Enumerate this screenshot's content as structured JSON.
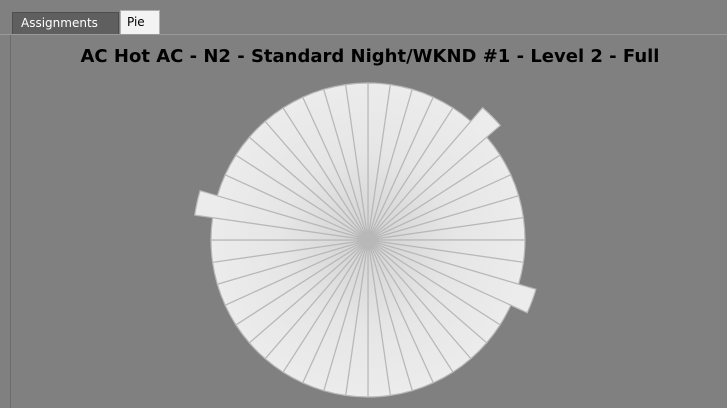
{
  "tabs": [
    {
      "label": "Assignments",
      "active": false
    },
    {
      "label": "Pie",
      "active": true
    }
  ],
  "colors": {
    "background": "#808080",
    "slice_fill": "#e8e8e8",
    "slice_stroke": "#b8b8b8"
  },
  "chart_data": {
    "type": "pie",
    "title": "AC Hot AC - N2 - Standard Night/WKND #1 - Level 2 - Full",
    "legend": "none",
    "slice_count": 44,
    "exploded_slice_indices": [
      5,
      13,
      34
    ],
    "values": [
      1,
      1,
      1,
      1,
      1,
      1,
      1,
      1,
      1,
      1,
      1,
      1,
      1,
      1,
      1,
      1,
      1,
      1,
      1,
      1,
      1,
      1,
      1,
      1,
      1,
      1,
      1,
      1,
      1,
      1,
      1,
      1,
      1,
      1,
      1,
      1,
      1,
      1,
      1,
      1,
      1,
      1,
      1,
      1
    ]
  }
}
